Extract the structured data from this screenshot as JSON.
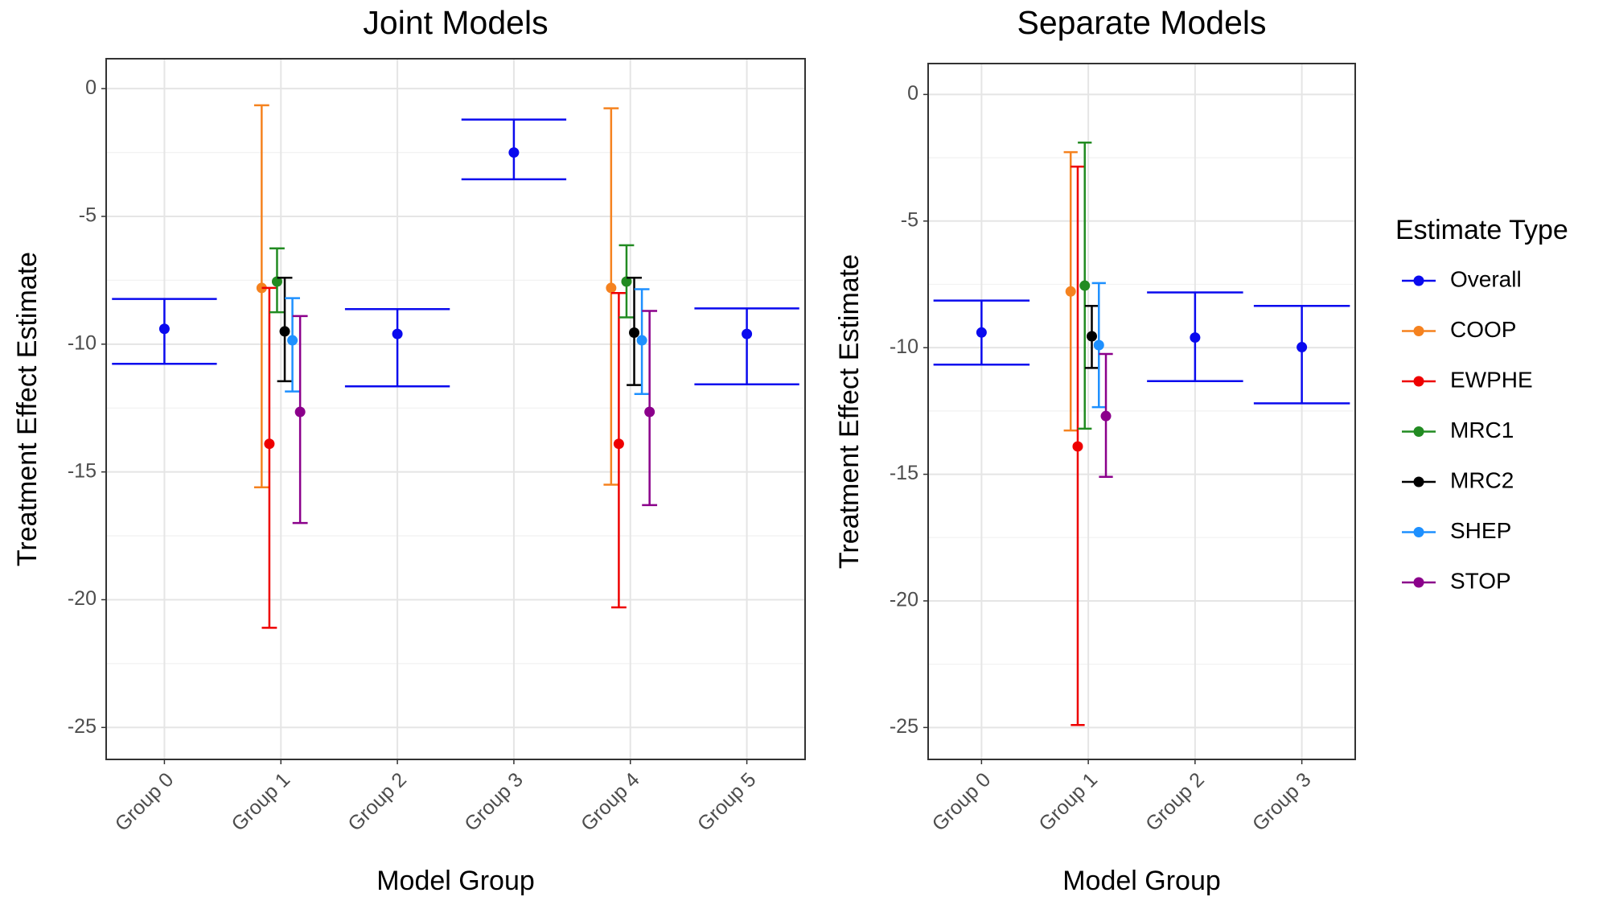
{
  "chart_data": [
    {
      "type": "errorbar",
      "title": "Joint Models",
      "x_label": "Model Group",
      "y_label": "Treatment Effect Estimate",
      "categories": [
        "Group 0",
        "Group 1",
        "Group 2",
        "Group 3",
        "Group 4",
        "Group 5"
      ],
      "ylim": [
        -26.25,
        1.17
      ],
      "yticks": [
        0,
        -5,
        -10,
        -15,
        -20,
        -25
      ],
      "grid": true,
      "series": [
        {
          "name": "Overall",
          "color": "#0a0aee",
          "values": [
            -9.4,
            null,
            -9.6,
            -2.5,
            null,
            -9.6
          ],
          "lower": [
            -10.77,
            null,
            -11.65,
            -3.55,
            null,
            -11.57
          ],
          "upper": [
            -8.23,
            null,
            -8.63,
            -1.21,
            null,
            -8.6
          ]
        },
        {
          "name": "COOP",
          "color": "#f5821f",
          "values": [
            null,
            -7.8,
            null,
            null,
            -7.8,
            null
          ],
          "lower": [
            null,
            -15.6,
            null,
            null,
            -15.5,
            null
          ],
          "upper": [
            null,
            -0.65,
            null,
            null,
            -0.77,
            null
          ]
        },
        {
          "name": "EWPHE",
          "color": "#ee0000",
          "values": [
            null,
            -13.9,
            null,
            null,
            -13.9,
            null
          ],
          "lower": [
            null,
            -21.1,
            null,
            null,
            -20.3,
            null
          ],
          "upper": [
            null,
            -7.8,
            null,
            null,
            -8.0,
            null
          ]
        },
        {
          "name": "MRC1",
          "color": "#228b22",
          "values": [
            null,
            -7.55,
            null,
            null,
            -7.55,
            null
          ],
          "lower": [
            null,
            -8.75,
            null,
            null,
            -8.95,
            null
          ],
          "upper": [
            null,
            -6.25,
            null,
            null,
            -6.13,
            null
          ]
        },
        {
          "name": "MRC2",
          "color": "#000000",
          "values": [
            null,
            -9.5,
            null,
            null,
            -9.55,
            null
          ],
          "lower": [
            null,
            -11.45,
            null,
            null,
            -11.6,
            null
          ],
          "upper": [
            null,
            -7.4,
            null,
            null,
            -7.4,
            null
          ]
        },
        {
          "name": "SHEP",
          "color": "#1e90ff",
          "values": [
            null,
            -9.85,
            null,
            null,
            -9.85,
            null
          ],
          "lower": [
            null,
            -11.85,
            null,
            null,
            -11.95,
            null
          ],
          "upper": [
            null,
            -8.2,
            null,
            null,
            -7.85,
            null
          ]
        },
        {
          "name": "STOP",
          "color": "#8b008b",
          "values": [
            null,
            -12.65,
            null,
            null,
            -12.65,
            null
          ],
          "lower": [
            null,
            -17.0,
            null,
            null,
            -16.3,
            null
          ],
          "upper": [
            null,
            -8.9,
            null,
            null,
            -8.7,
            null
          ]
        }
      ]
    },
    {
      "type": "errorbar",
      "title": "Separate Models",
      "x_label": "Model Group",
      "y_label": "Treatment Effect Estimate",
      "categories": [
        "Group 0",
        "Group 1",
        "Group 2",
        "Group 3"
      ],
      "ylim": [
        -26.26,
        1.22
      ],
      "yticks": [
        0,
        -5,
        -10,
        -15,
        -20,
        -25
      ],
      "grid": true,
      "legend": "right",
      "legend_title": "Estimate Type",
      "series": [
        {
          "name": "Overall",
          "color": "#0a0aee",
          "values": [
            -9.4,
            null,
            -9.6,
            -9.98
          ],
          "lower": [
            -10.67,
            null,
            -11.32,
            -12.2
          ],
          "upper": [
            -8.14,
            null,
            -7.82,
            -8.35
          ]
        },
        {
          "name": "COOP",
          "color": "#f5821f",
          "values": [
            null,
            -7.78,
            null,
            null
          ],
          "lower": [
            null,
            -13.27,
            null,
            null
          ],
          "upper": [
            null,
            -2.28,
            null,
            null
          ]
        },
        {
          "name": "EWPHE",
          "color": "#ee0000",
          "values": [
            null,
            -13.9,
            null,
            null
          ],
          "lower": [
            null,
            -24.9,
            null,
            null
          ],
          "upper": [
            null,
            -2.85,
            null,
            null
          ]
        },
        {
          "name": "MRC1",
          "color": "#228b22",
          "values": [
            null,
            -7.55,
            null,
            null
          ],
          "lower": [
            null,
            -13.2,
            null,
            null
          ],
          "upper": [
            null,
            -1.9,
            null,
            null
          ]
        },
        {
          "name": "MRC2",
          "color": "#000000",
          "values": [
            null,
            -9.55,
            null,
            null
          ],
          "lower": [
            null,
            -10.8,
            null,
            null
          ],
          "upper": [
            null,
            -8.35,
            null,
            null
          ]
        },
        {
          "name": "SHEP",
          "color": "#1e90ff",
          "values": [
            null,
            -9.9,
            null,
            null
          ],
          "lower": [
            null,
            -12.35,
            null,
            null
          ],
          "upper": [
            null,
            -7.45,
            null,
            null
          ]
        },
        {
          "name": "STOP",
          "color": "#8b008b",
          "values": [
            null,
            -12.7,
            null,
            null
          ],
          "lower": [
            null,
            -15.1,
            null,
            null
          ],
          "upper": [
            null,
            -10.25,
            null,
            null
          ]
        }
      ]
    }
  ]
}
